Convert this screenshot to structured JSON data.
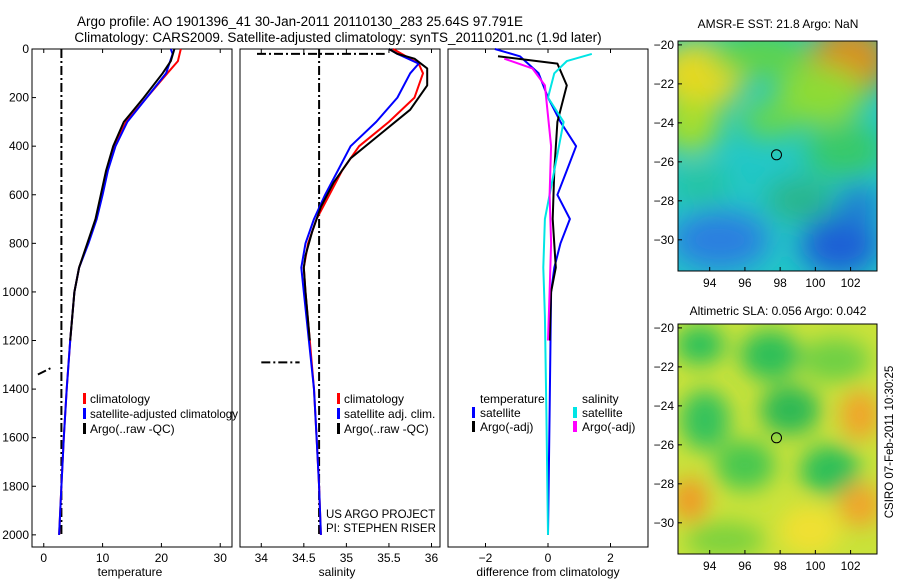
{
  "header": {
    "line1": "Argo profile: AO 1901396_41 30-Jan-2011 20110130_283 25.64S 97.791E",
    "line2": "Climatology: CARS2009. Satellite-adjusted climatology: synTS_20110201.nc (1.9d later)"
  },
  "credits": {
    "project": "US ARGO PROJECT",
    "pi": "PI: STEPHEN RISER",
    "stamp": "CSIRO 07-Feb-2011 10:30:25"
  },
  "colors": {
    "climatology": "#ff0000",
    "satellite": "#0000ff",
    "argo": "#000000",
    "salinity_satellite": "#00e5e5",
    "salinity_argo": "#ff00ff"
  },
  "chart_data": [
    {
      "id": "temperature",
      "type": "line",
      "xlabel": "temperature",
      "xlim": [
        -2,
        32
      ],
      "ylim": [
        0,
        2050
      ],
      "xticks": [
        0,
        10,
        20,
        30
      ],
      "yticks": [
        0,
        200,
        400,
        600,
        800,
        1000,
        1200,
        1400,
        1600,
        1800,
        2000
      ],
      "y_reversed": true,
      "legend": [
        "climatology",
        "satellite-adjusted climatology",
        "Argo(..raw -QC)"
      ],
      "series": [
        {
          "name": "climatology",
          "color": "#ff0000",
          "points": [
            [
              23.3,
              0
            ],
            [
              22.8,
              50
            ],
            [
              21,
              100
            ],
            [
              17.5,
              200
            ],
            [
              14,
              300
            ],
            [
              12,
              400
            ],
            [
              10.7,
              500
            ],
            [
              9.8,
              600
            ],
            [
              8.9,
              700
            ],
            [
              7.5,
              800
            ],
            [
              6,
              900
            ],
            [
              5.2,
              1000
            ],
            [
              4.5,
              1200
            ],
            [
              3.9,
              1400
            ],
            [
              3.4,
              1600
            ],
            [
              3,
              1800
            ],
            [
              2.6,
              2000
            ]
          ]
        },
        {
          "name": "satellite-adjusted climatology",
          "color": "#0000ff",
          "points": [
            [
              21.6,
              0
            ],
            [
              21.9,
              20
            ],
            [
              20.8,
              100
            ],
            [
              17.5,
              200
            ],
            [
              14.2,
              300
            ],
            [
              12.2,
              400
            ],
            [
              10.9,
              500
            ],
            [
              10,
              600
            ],
            [
              9,
              700
            ],
            [
              7.6,
              800
            ],
            [
              6,
              900
            ],
            [
              5.2,
              1000
            ],
            [
              4.5,
              1200
            ],
            [
              3.9,
              1400
            ],
            [
              3.4,
              1600
            ],
            [
              3,
              1800
            ],
            [
              2.6,
              2000
            ]
          ]
        },
        {
          "name": "Argo(..raw -QC)",
          "color": "#000000",
          "points": [
            [
              22.2,
              0
            ],
            [
              21.6,
              50
            ],
            [
              20.2,
              100
            ],
            [
              17,
              200
            ],
            [
              13.6,
              300
            ],
            [
              11.8,
              400
            ],
            [
              10.6,
              500
            ],
            [
              9.7,
              600
            ],
            [
              8.8,
              700
            ],
            [
              7.4,
              800
            ],
            [
              6,
              900
            ],
            [
              5.2,
              1000
            ],
            [
              4.5,
              1200
            ]
          ]
        }
      ],
      "dashdot": [
        {
          "points": [
            [
              3,
              0
            ],
            [
              3,
              2000
            ]
          ]
        },
        {
          "points": [
            [
              -1,
              1340
            ],
            [
              1.5,
              1310
            ]
          ]
        }
      ]
    },
    {
      "id": "salinity",
      "type": "line",
      "xlabel": "salinity",
      "xlim": [
        33.75,
        36.1
      ],
      "ylim": [
        0,
        2050
      ],
      "xticks": [
        34,
        34.5,
        35,
        35.5,
        36
      ],
      "y_reversed": true,
      "legend": [
        "climatology",
        "satellite adj. clim.",
        "Argo(..raw -QC)"
      ],
      "series": [
        {
          "name": "climatology",
          "color": "#ff0000",
          "points": [
            [
              35.55,
              0
            ],
            [
              35.65,
              20
            ],
            [
              35.85,
              60
            ],
            [
              35.9,
              100
            ],
            [
              35.8,
              200
            ],
            [
              35.5,
              300
            ],
            [
              35.15,
              400
            ],
            [
              34.95,
              500
            ],
            [
              34.8,
              600
            ],
            [
              34.65,
              700
            ],
            [
              34.55,
              800
            ],
            [
              34.5,
              900
            ],
            [
              34.52,
              1000
            ],
            [
              34.57,
              1200
            ],
            [
              34.62,
              1400
            ],
            [
              34.65,
              1600
            ],
            [
              34.68,
              1800
            ],
            [
              34.7,
              2000
            ]
          ]
        },
        {
          "name": "satellite adj. clim.",
          "color": "#0000ff",
          "points": [
            [
              35.5,
              0
            ],
            [
              35.6,
              20
            ],
            [
              35.85,
              60
            ],
            [
              35.75,
              100
            ],
            [
              35.6,
              200
            ],
            [
              35.35,
              300
            ],
            [
              35.05,
              400
            ],
            [
              34.9,
              500
            ],
            [
              34.75,
              600
            ],
            [
              34.62,
              700
            ],
            [
              34.52,
              800
            ],
            [
              34.47,
              900
            ],
            [
              34.5,
              1000
            ],
            [
              34.56,
              1200
            ],
            [
              34.62,
              1400
            ],
            [
              34.65,
              1600
            ],
            [
              34.68,
              1800
            ],
            [
              34.7,
              2000
            ]
          ]
        },
        {
          "name": "Argo(..raw -QC)",
          "color": "#000000",
          "points": [
            [
              35.5,
              0
            ],
            [
              35.6,
              20
            ],
            [
              35.8,
              40
            ],
            [
              35.95,
              80
            ],
            [
              35.95,
              150
            ],
            [
              35.75,
              250
            ],
            [
              35.4,
              350
            ],
            [
              35.05,
              450
            ],
            [
              34.85,
              550
            ],
            [
              34.7,
              650
            ],
            [
              34.6,
              750
            ],
            [
              34.52,
              850
            ],
            [
              34.5,
              900
            ],
            [
              34.52,
              1000
            ],
            [
              34.57,
              1200
            ]
          ]
        }
      ],
      "dashdot": [
        {
          "points": [
            [
              34.68,
              0
            ],
            [
              34.68,
              2000
            ]
          ]
        },
        {
          "points": [
            [
              33.95,
              20
            ],
            [
              35.45,
              20
            ]
          ]
        },
        {
          "points": [
            [
              34.0,
              1290
            ],
            [
              34.45,
              1290
            ]
          ]
        }
      ]
    },
    {
      "id": "difference",
      "type": "line",
      "xlabel": "difference from climatology",
      "xlim": [
        -3.2,
        3.2
      ],
      "ylim": [
        0,
        2050
      ],
      "xticks": [
        -2,
        0,
        2
      ],
      "y_reversed": true,
      "legend_groups": [
        {
          "title": "temperature",
          "entries": [
            "satellite",
            "Argo(-adj)"
          ]
        },
        {
          "title": "salinity",
          "entries": [
            "satellite",
            "Argo(-adj)"
          ]
        }
      ],
      "series": [
        {
          "name": "temperature satellite",
          "color": "#0000ff",
          "points": [
            [
              -1.7,
              0
            ],
            [
              -0.9,
              30
            ],
            [
              -0.3,
              100
            ],
            [
              0,
              200
            ],
            [
              0.4,
              300
            ],
            [
              0.9,
              400
            ],
            [
              0.6,
              500
            ],
            [
              0.3,
              600
            ],
            [
              0.7,
              700
            ],
            [
              0.4,
              800
            ],
            [
              0.2,
              900
            ],
            [
              0.1,
              1000
            ],
            [
              0.05,
              1500
            ],
            [
              0,
              2000
            ]
          ]
        },
        {
          "name": "temperature Argo(-adj)",
          "color": "#000000",
          "points": [
            [
              -1.6,
              30
            ],
            [
              0.3,
              60
            ],
            [
              0.6,
              150
            ],
            [
              0.3,
              300
            ],
            [
              0.2,
              500
            ],
            [
              0.15,
              700
            ],
            [
              0.25,
              900
            ],
            [
              0.1,
              1000
            ],
            [
              0.05,
              1200
            ]
          ]
        },
        {
          "name": "salinity satellite",
          "color": "#00e5e5",
          "points": [
            [
              1.4,
              20
            ],
            [
              0.6,
              50
            ],
            [
              0.2,
              100
            ],
            [
              0,
              200
            ],
            [
              0.5,
              300
            ],
            [
              0.2,
              500
            ],
            [
              -0.1,
              700
            ],
            [
              -0.15,
              900
            ],
            [
              -0.1,
              1100
            ],
            [
              -0.05,
              1500
            ],
            [
              0,
              2000
            ]
          ]
        },
        {
          "name": "salinity Argo(-adj)",
          "color": "#ff00ff",
          "points": [
            [
              -1.4,
              40
            ],
            [
              -0.5,
              80
            ],
            [
              -0.1,
              150
            ],
            [
              0.1,
              400
            ],
            [
              0.05,
              600
            ],
            [
              0.1,
              800
            ],
            [
              0.05,
              1000
            ],
            [
              0,
              1200
            ]
          ]
        }
      ]
    },
    {
      "id": "sst_map",
      "type": "heatmap",
      "title": "AMSR-E SST: 21.8 Argo: NaN",
      "xlim": [
        92.2,
        103.5
      ],
      "ylim": [
        -31.6,
        -19.8
      ],
      "xticks": [
        94,
        96,
        98,
        100,
        102
      ],
      "yticks": [
        -20,
        -22,
        -24,
        -26,
        -28,
        -30
      ],
      "marker": [
        97.791,
        -25.64
      ]
    },
    {
      "id": "sla_map",
      "type": "heatmap",
      "title": "Altimetric SLA: 0.056 Argo: 0.042",
      "xlim": [
        92.2,
        103.5
      ],
      "ylim": [
        -31.6,
        -19.8
      ],
      "xticks": [
        94,
        96,
        98,
        100,
        102
      ],
      "yticks": [
        -20,
        -22,
        -24,
        -26,
        -28,
        -30
      ],
      "marker": [
        97.791,
        -25.64
      ]
    }
  ]
}
